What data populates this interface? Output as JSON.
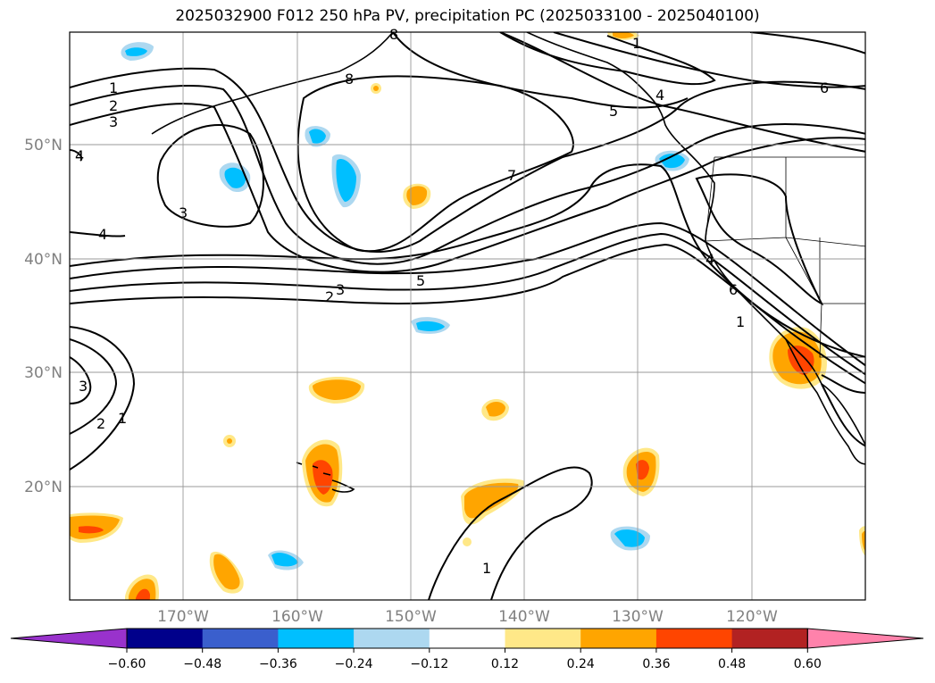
{
  "title": "2025032900 F012 250 hPa PV, precipitation PC (2025033100 - 2025040100)",
  "latitude_labels": [
    "50°N",
    "40°N",
    "30°N",
    "20°N"
  ],
  "longitude_labels": [
    "170°W",
    "160°W",
    "150°W",
    "140°W",
    "130°W",
    "120°W"
  ],
  "colorbar": {
    "tick_labels": [
      "−0.60",
      "−0.48",
      "−0.36",
      "−0.24",
      "−0.12",
      "0.12",
      "0.24",
      "0.36",
      "0.48",
      "0.60"
    ],
    "colors": [
      "#9932cc",
      "#00008b",
      "#3a5fcd",
      "#00bfff",
      "#add8f0",
      "#ffffff",
      "#ffe888",
      "#ffa500",
      "#ff4500",
      "#b22222",
      "#ff82ab"
    ]
  },
  "contour_labels": [
    "1",
    "2",
    "3",
    "4",
    "5",
    "6",
    "7",
    "8",
    "4",
    "3",
    "4",
    "5",
    "3",
    "2",
    "1",
    "3",
    "2",
    "1",
    "1",
    "4",
    "6",
    "8",
    "1"
  ],
  "colors": {
    "coast": "#000000",
    "grid": "#999999",
    "border": "#000000"
  }
}
